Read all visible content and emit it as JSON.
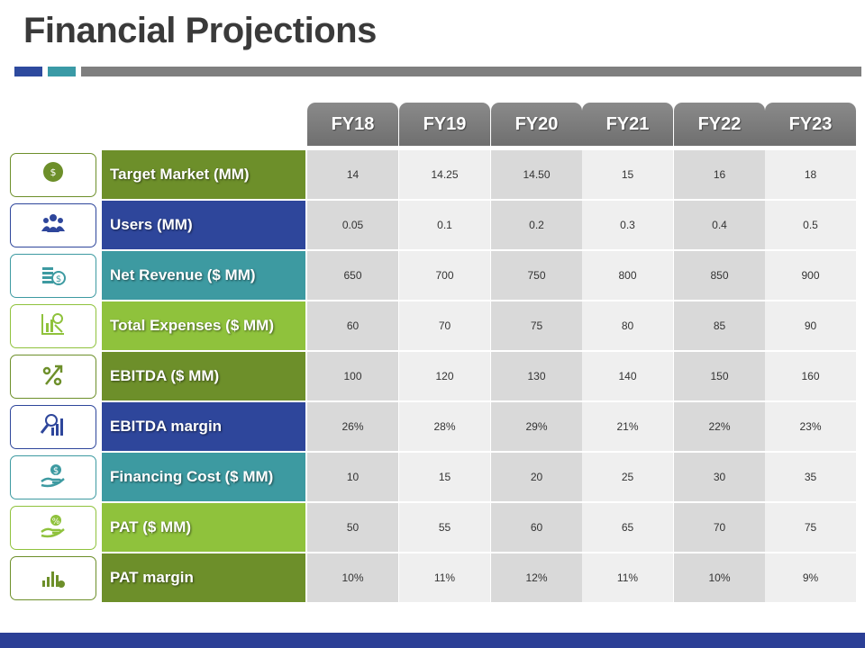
{
  "title": "Financial Projections",
  "years": [
    "FY18",
    "FY19",
    "FY20",
    "FY21",
    "FY22",
    "FY23"
  ],
  "rows": [
    {
      "label": "Target Market (MM)",
      "color": "#6d8f2a",
      "icon": "money-hand-icon",
      "values": [
        "14",
        "14.25",
        "14.50",
        "15",
        "16",
        "18"
      ]
    },
    {
      "label": "Users (MM)",
      "color": "#2e469b",
      "icon": "users-icon",
      "values": [
        "0.05",
        "0.1",
        "0.2",
        "0.3",
        "0.4",
        "0.5"
      ]
    },
    {
      "label": "Net Revenue ($ MM)",
      "color": "#3d9aa1",
      "icon": "coin-stack-icon",
      "values": [
        "650",
        "700",
        "750",
        "800",
        "850",
        "900"
      ]
    },
    {
      "label": "Total Expenses ($ MM)",
      "color": "#8fc23c",
      "icon": "expense-chart-icon",
      "values": [
        "60",
        "70",
        "75",
        "80",
        "85",
        "90"
      ]
    },
    {
      "label": "EBITDA ($ MM)",
      "color": "#6d8f2a",
      "icon": "percent-arrow-icon",
      "values": [
        "100",
        "120",
        "130",
        "140",
        "150",
        "160"
      ]
    },
    {
      "label": "EBITDA margin",
      "color": "#2e469b",
      "icon": "magnifier-chart-icon",
      "values": [
        "26%",
        "28%",
        "29%",
        "21%",
        "22%",
        "23%"
      ]
    },
    {
      "label": "Financing Cost ($ MM)",
      "color": "#3d9aa1",
      "icon": "dollar-hand-icon",
      "values": [
        "10",
        "15",
        "20",
        "25",
        "30",
        "35"
      ]
    },
    {
      "label": "PAT ($ MM)",
      "color": "#8fc23c",
      "icon": "percent-hand-icon",
      "values": [
        "50",
        "55",
        "60",
        "65",
        "70",
        "75"
      ]
    },
    {
      "label": "PAT margin",
      "color": "#6d8f2a",
      "icon": "bar-chart-icon",
      "values": [
        "10%",
        "11%",
        "12%",
        "11%",
        "10%",
        "9%"
      ]
    }
  ],
  "colors": {
    "accent_blue": "#2e4a9e",
    "accent_teal": "#3a9aa6",
    "accent_gray": "#7f7f7f",
    "footer": "#2b3f96"
  }
}
